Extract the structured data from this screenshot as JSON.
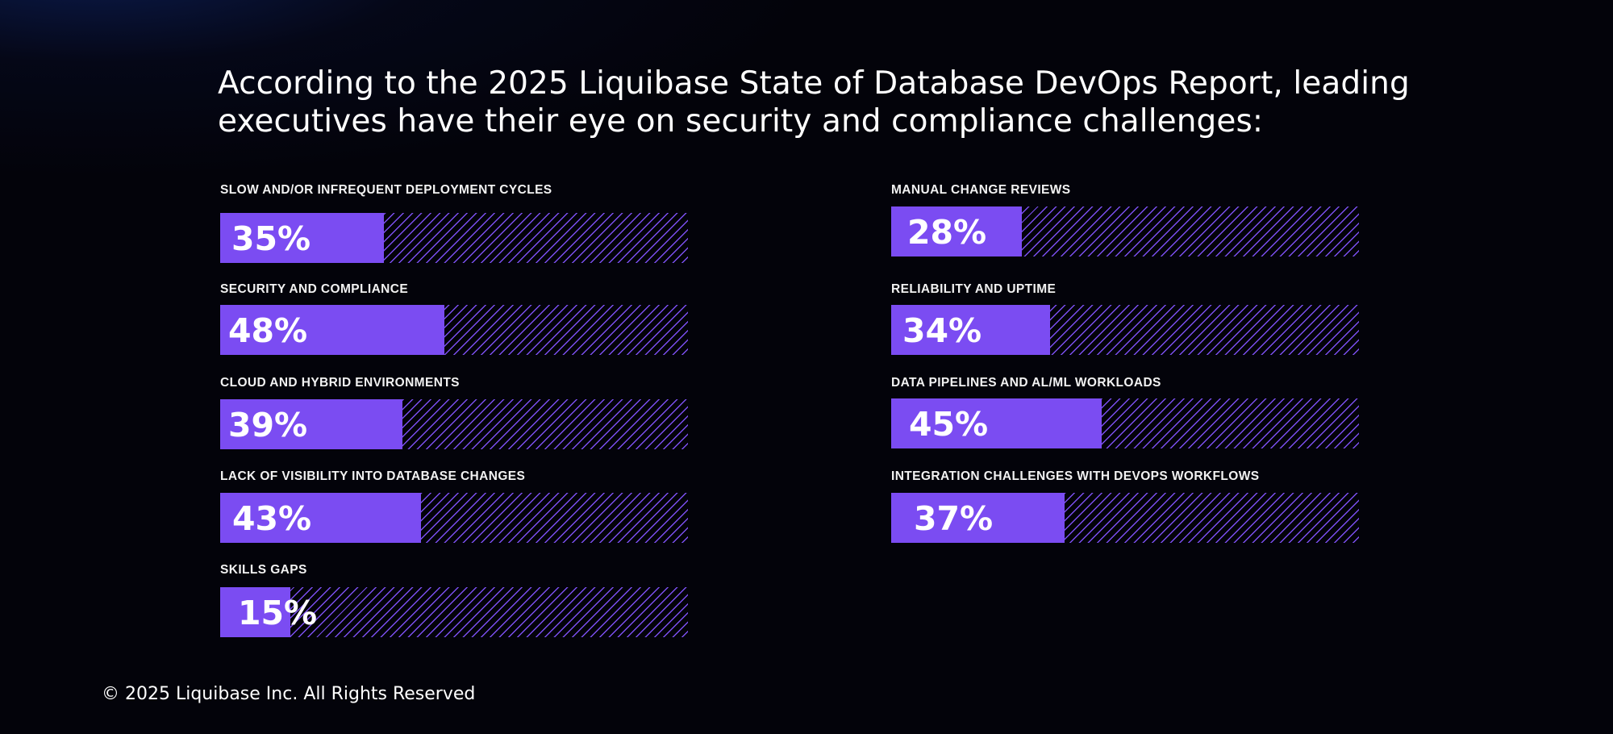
{
  "title": "According to the 2025 Liquibase State of Database DevOps Report, leading executives have their eye on security and compliance challenges:",
  "footer": "© 2025 Liquibase Inc. All Rights Reserved",
  "colors": {
    "bar": "#7b4cf2",
    "background": "#03030a"
  },
  "chart_data": {
    "type": "bar",
    "orientation": "horizontal",
    "ylim": [
      0,
      100
    ],
    "categories": [
      "SLOW AND/OR INFREQUENT DEPLOYMENT CYCLES",
      "SECURITY AND COMPLIANCE",
      "CLOUD AND HYBRID ENVIRONMENTS",
      "LACK OF VISIBILITY INTO DATABASE CHANGES",
      "SKILLS GAPS",
      "MANUAL CHANGE REVIEWS",
      "RELIABILITY AND UPTIME",
      "DATA PIPELINES AND AL/ML WORKLOADS",
      "INTEGRATION CHALLENGES WITH DEVOPS WORKFLOWS"
    ],
    "values": [
      35,
      48,
      39,
      43,
      15,
      28,
      34,
      45,
      37
    ],
    "value_labels": [
      "35%",
      "48%",
      "39%",
      "43%",
      "15%",
      "28%",
      "34%",
      "45%",
      "37%"
    ]
  }
}
